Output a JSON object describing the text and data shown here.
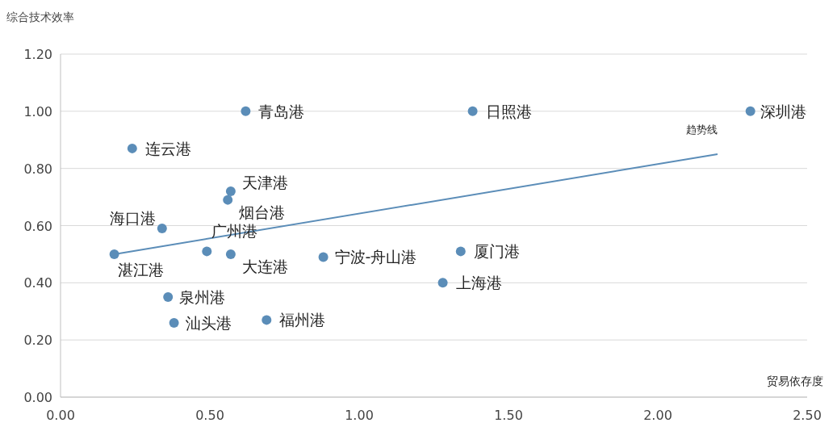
{
  "chart_data": {
    "type": "scatter",
    "ylabel": "综合技术效率",
    "xlabel": "贸易依存度",
    "xlim": [
      0,
      2.5
    ],
    "ylim": [
      0,
      1.2
    ],
    "xticks": [
      {
        "value": 0,
        "label": "0.00"
      },
      {
        "value": 0.5,
        "label": "0.50"
      },
      {
        "value": 1,
        "label": "1.00"
      },
      {
        "value": 1.5,
        "label": "1.50"
      },
      {
        "value": 2,
        "label": "2.00"
      },
      {
        "value": 2.5,
        "label": "2.50"
      }
    ],
    "yticks": [
      {
        "value": 0,
        "label": "0.00"
      },
      {
        "value": 0.2,
        "label": "0.20"
      },
      {
        "value": 0.4,
        "label": "0.40"
      },
      {
        "value": 0.6,
        "label": "0.60"
      },
      {
        "value": 0.8,
        "label": "0.80"
      },
      {
        "value": 1,
        "label": "1.00"
      },
      {
        "value": 1.2,
        "label": "1.20"
      }
    ],
    "grid": "y",
    "marker": "circle",
    "series": [
      {
        "color": "#5b8db8",
        "x": [
          0.62,
          1.38,
          2.31,
          0.24,
          0.57,
          0.56,
          0.34,
          0.18,
          0.49,
          0.57,
          0.88,
          1.34,
          1.28,
          0.36,
          0.38,
          0.69
        ],
        "values": [
          1.0,
          1.0,
          1.0,
          0.87,
          0.72,
          0.69,
          0.59,
          0.5,
          0.51,
          0.5,
          0.49,
          0.51,
          0.4,
          0.35,
          0.26,
          0.27
        ]
      },
      {
        "type": "line",
        "marker": "none",
        "color": "#5b8db8",
        "x": [
          0.18,
          2.2
        ],
        "values": [
          0.5,
          0.85
        ]
      }
    ],
    "annotations": [
      {
        "text": "青岛港",
        "x": 0.62,
        "y": 1.0
      },
      {
        "text": "日照港",
        "x": 1.38,
        "y": 1.0
      },
      {
        "text": "深圳港",
        "x": 2.31,
        "y": 1.0
      },
      {
        "text": "连云港",
        "x": 0.24,
        "y": 0.87
      },
      {
        "text": "天津港",
        "x": 0.57,
        "y": 0.72
      },
      {
        "text": "烟台港",
        "x": 0.56,
        "y": 0.69
      },
      {
        "text": "海口港",
        "x": 0.34,
        "y": 0.59
      },
      {
        "text": "湛江港",
        "x": 0.18,
        "y": 0.5
      },
      {
        "text": "广州港",
        "x": 0.49,
        "y": 0.51
      },
      {
        "text": "大连港",
        "x": 0.57,
        "y": 0.5
      },
      {
        "text": "宁波-舟山港",
        "x": 0.88,
        "y": 0.49
      },
      {
        "text": "厦门港",
        "x": 1.34,
        "y": 0.51
      },
      {
        "text": "上海港",
        "x": 1.28,
        "y": 0.4
      },
      {
        "text": "泉州港",
        "x": 0.36,
        "y": 0.35
      },
      {
        "text": "汕头港",
        "x": 0.38,
        "y": 0.26
      },
      {
        "text": "福州港",
        "x": 0.69,
        "y": 0.27
      },
      {
        "text": "趋势线",
        "x": 2.2,
        "y": 0.85
      }
    ]
  }
}
